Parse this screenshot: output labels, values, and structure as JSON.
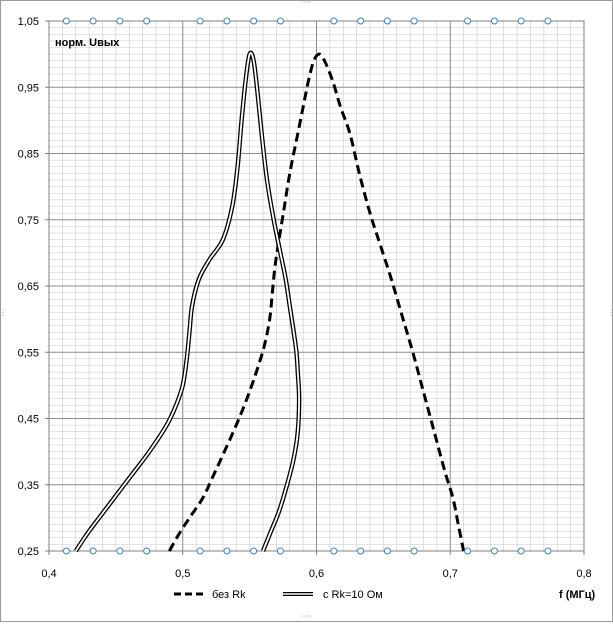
{
  "chart_data": {
    "type": "line",
    "title": "",
    "y_title": "норм. Uвых",
    "x_title": "f (МГц)",
    "xlim": [
      0.4,
      0.8
    ],
    "ylim": [
      0.25,
      1.05
    ],
    "x_ticks": [
      "0,4",
      "0,5",
      "0,6",
      "0,7",
      "0,8"
    ],
    "x_tick_values": [
      0.4,
      0.5,
      0.6,
      0.7,
      0.8
    ],
    "y_ticks": [
      "0,25",
      "0,35",
      "0,45",
      "0,55",
      "0,65",
      "0,75",
      "0,85",
      "0,95",
      "1,05"
    ],
    "y_tick_values": [
      0.25,
      0.35,
      0.45,
      0.55,
      0.65,
      0.75,
      0.85,
      0.95,
      1.05
    ],
    "grid": true,
    "minor_grid": {
      "x_step": 0.01,
      "y_step": 0.01
    },
    "legend_position": "bottom",
    "series": [
      {
        "name": "без Rk",
        "style": "dashed",
        "color": "#000000",
        "x": [
          0.49,
          0.497,
          0.505,
          0.515,
          0.522,
          0.53,
          0.54,
          0.548,
          0.555,
          0.561,
          0.565,
          0.567,
          0.569,
          0.572,
          0.576,
          0.58,
          0.585,
          0.59,
          0.594,
          0.598,
          0.602,
          0.606,
          0.612,
          0.618,
          0.625,
          0.632,
          0.64,
          0.648,
          0.656,
          0.664,
          0.672,
          0.68,
          0.688,
          0.696,
          0.702,
          0.706,
          0.71
        ],
        "y": [
          0.25,
          0.275,
          0.3,
          0.33,
          0.36,
          0.395,
          0.44,
          0.48,
          0.52,
          0.56,
          0.6,
          0.64,
          0.68,
          0.72,
          0.77,
          0.82,
          0.87,
          0.92,
          0.96,
          0.99,
          1.0,
          0.99,
          0.96,
          0.92,
          0.88,
          0.82,
          0.76,
          0.71,
          0.66,
          0.605,
          0.55,
          0.49,
          0.43,
          0.37,
          0.33,
          0.29,
          0.25
        ]
      },
      {
        "name": "с Rk=10 Ом",
        "style": "double",
        "color": "#000000",
        "x": [
          0.42,
          0.43,
          0.445,
          0.46,
          0.475,
          0.488,
          0.495,
          0.5,
          0.503,
          0.505,
          0.507,
          0.512,
          0.52,
          0.53,
          0.537,
          0.541,
          0.544,
          0.547,
          0.55,
          0.553,
          0.556,
          0.559,
          0.563,
          0.568,
          0.573,
          0.577,
          0.58,
          0.583,
          0.585,
          0.586,
          0.587,
          0.586,
          0.583,
          0.578,
          0.572,
          0.566,
          0.562,
          0.56
        ],
        "y": [
          0.25,
          0.28,
          0.32,
          0.36,
          0.4,
          0.44,
          0.47,
          0.5,
          0.54,
          0.58,
          0.62,
          0.66,
          0.69,
          0.72,
          0.77,
          0.83,
          0.9,
          0.96,
          1.0,
          0.99,
          0.94,
          0.88,
          0.81,
          0.75,
          0.7,
          0.66,
          0.62,
          0.58,
          0.55,
          0.52,
          0.48,
          0.43,
          0.39,
          0.35,
          0.31,
          0.28,
          0.26,
          0.25
        ]
      }
    ],
    "top_markers_x": [
      0.413,
      0.433,
      0.453,
      0.473,
      0.513,
      0.533,
      0.553,
      0.573,
      0.613,
      0.633,
      0.653,
      0.673,
      0.713,
      0.733,
      0.753,
      0.773
    ],
    "bottom_markers_x": [
      0.413,
      0.433,
      0.453,
      0.473,
      0.513,
      0.533,
      0.553,
      0.573,
      0.613,
      0.633,
      0.653,
      0.673,
      0.713,
      0.733,
      0.753,
      0.773
    ]
  }
}
